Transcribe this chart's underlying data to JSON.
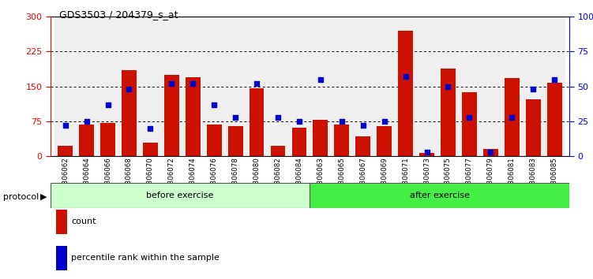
{
  "title": "GDS3503 / 204379_s_at",
  "categories": [
    "GSM306062",
    "GSM306064",
    "GSM306066",
    "GSM306068",
    "GSM306070",
    "GSM306072",
    "GSM306074",
    "GSM306076",
    "GSM306078",
    "GSM306080",
    "GSM306082",
    "GSM306084",
    "GSM306063",
    "GSM306065",
    "GSM306067",
    "GSM306069",
    "GSM306071",
    "GSM306073",
    "GSM306075",
    "GSM306077",
    "GSM306079",
    "GSM306081",
    "GSM306083",
    "GSM306085"
  ],
  "count_values": [
    22,
    68,
    72,
    185,
    30,
    175,
    170,
    68,
    65,
    147,
    22,
    62,
    78,
    68,
    42,
    65,
    270,
    8,
    188,
    137,
    15,
    168,
    122,
    158
  ],
  "percentile_values": [
    22,
    25,
    37,
    48,
    20,
    52,
    52,
    37,
    28,
    52,
    28,
    25,
    55,
    25,
    22,
    25,
    57,
    3,
    50,
    28,
    3,
    28,
    48,
    55
  ],
  "before_count": 12,
  "after_count": 12,
  "before_label": "before exercise",
  "after_label": "after exercise",
  "protocol_label": "protocol",
  "legend_count": "count",
  "legend_percentile": "percentile rank within the sample",
  "bar_color": "#cc1100",
  "dot_color": "#0000cc",
  "before_bg": "#ccffcc",
  "after_bg": "#44ee44",
  "ylim_left": [
    0,
    300
  ],
  "ylim_right": [
    0,
    100
  ],
  "yticks_left": [
    0,
    75,
    150,
    225,
    300
  ],
  "yticks_right": [
    0,
    25,
    50,
    75,
    100
  ],
  "ytick_labels_right": [
    "0",
    "25",
    "50",
    "75",
    "100%"
  ]
}
